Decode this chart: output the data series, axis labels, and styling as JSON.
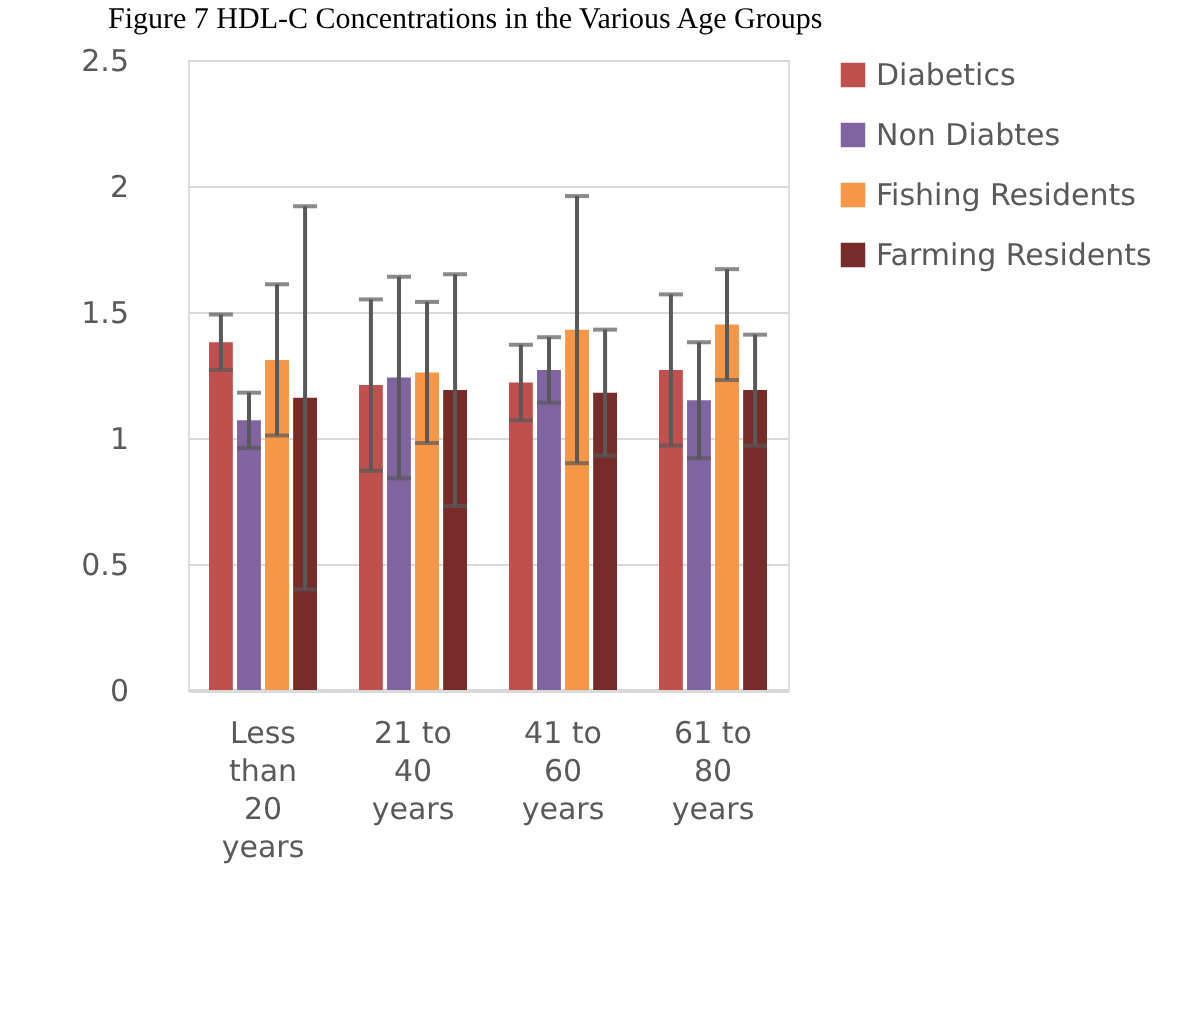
{
  "chart_data": {
    "type": "bar",
    "title": "Figure 7 HDL-C Concentrations in the Various Age Groups",
    "categories": [
      "Less than 20 years",
      "21 to 40 years",
      "41 to 60 years",
      "61 to 80 years"
    ],
    "series": [
      {
        "name": "Diabetics",
        "color": "#c0504d",
        "values": [
          1.38,
          1.21,
          1.22,
          1.27
        ],
        "errors": [
          0.11,
          0.34,
          0.15,
          0.3
        ]
      },
      {
        "name": "Non Diabtes",
        "color": "#8064a2",
        "values": [
          1.07,
          1.24,
          1.27,
          1.15
        ],
        "errors": [
          0.11,
          0.4,
          0.13,
          0.23
        ]
      },
      {
        "name": "Fishing Residents",
        "color": "#f79646",
        "values": [
          1.31,
          1.26,
          1.43,
          1.45
        ],
        "errors": [
          0.3,
          0.28,
          0.53,
          0.22
        ]
      },
      {
        "name": "Farming Residents",
        "color": "#772c2a",
        "values": [
          1.16,
          1.19,
          1.18,
          1.19
        ],
        "errors": [
          0.76,
          0.46,
          0.25,
          0.22
        ]
      }
    ],
    "ylim": [
      0,
      2.5
    ],
    "yticks": [
      0,
      0.5,
      1,
      1.5,
      2,
      2.5
    ],
    "grid": "y",
    "legend": "right"
  }
}
